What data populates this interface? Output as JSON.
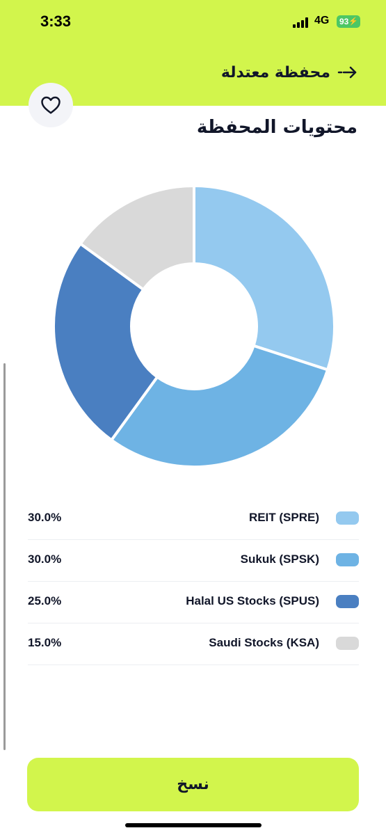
{
  "status_bar": {
    "time": "3:33",
    "network": "4G",
    "battery": "93",
    "icons": [
      "signal-bars-icon",
      "battery-charging-icon"
    ]
  },
  "header": {
    "title": "محفظة معتدلة",
    "back_icon": "arrow-right-icon",
    "background": "#d2f54c"
  },
  "favorite_icon": "heart-outline-icon",
  "section_title": "محتويات المحفظة",
  "chart_data": {
    "type": "pie",
    "donut": true,
    "categories": [
      "REIT (SPRE)",
      "Sukuk (SPSK)",
      "Halal US Stocks (SPUS)",
      "Saudi Stocks (KSA)"
    ],
    "values": [
      30.0,
      30.0,
      25.0,
      15.0
    ],
    "colors": [
      "#94c9ef",
      "#6eb3e4",
      "#4a7fc1",
      "#d9d9d9"
    ]
  },
  "legend": [
    {
      "label": "REIT (SPRE)",
      "percent": "30.0%",
      "color": "#94c9ef"
    },
    {
      "label": "Sukuk (SPSK)",
      "percent": "30.0%",
      "color": "#6eb3e4"
    },
    {
      "label": "Halal US Stocks (SPUS)",
      "percent": "25.0%",
      "color": "#4a7fc1"
    },
    {
      "label": "Saudi Stocks (KSA)",
      "percent": "15.0%",
      "color": "#d9d9d9"
    }
  ],
  "copy_button": {
    "label": "نسخ",
    "color": "#d2f54c"
  }
}
